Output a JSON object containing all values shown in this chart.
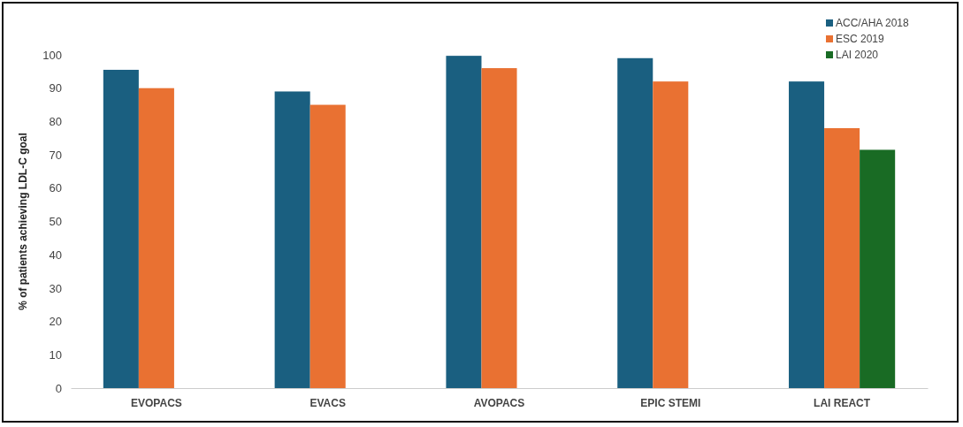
{
  "chart_data": {
    "type": "bar",
    "ylabel": "% of patients achieving LDL-C goal",
    "categories": [
      "EVOPACS",
      "EVACS",
      "AVOPACS",
      "EPIC STEMI",
      "LAI REACT"
    ],
    "series": [
      {
        "name": "ACC/AHA 2018",
        "color": "#1a5f80",
        "values": [
          95.5,
          89,
          99.7,
          99,
          92
        ]
      },
      {
        "name": "ESC 2019",
        "color": "#e97132",
        "values": [
          90,
          85,
          96,
          92,
          78
        ]
      },
      {
        "name": "LAI 2020",
        "color": "#196b24",
        "values": [
          null,
          null,
          null,
          null,
          71.5
        ]
      }
    ],
    "ylim": [
      0,
      100
    ],
    "yticks": [
      0,
      10,
      20,
      30,
      40,
      50,
      60,
      70,
      80,
      90,
      100
    ],
    "grid": false,
    "legend": "top right"
  }
}
